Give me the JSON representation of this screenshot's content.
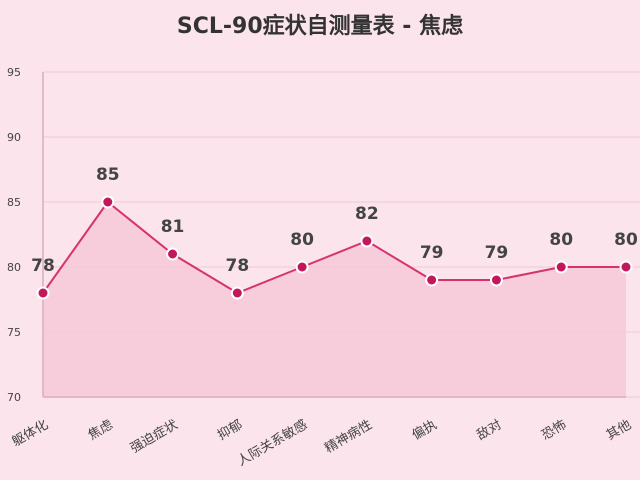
{
  "chart_data": {
    "type": "line",
    "title": "SCL-90症状自测量表 - 焦虑",
    "xlabel": "",
    "ylabel": "",
    "categories": [
      "躯体化",
      "焦虑",
      "强迫症状",
      "抑郁",
      "人际关系敏感",
      "精神病性",
      "偏执",
      "敌对",
      "恐怖",
      "其他"
    ],
    "series": [
      {
        "values": [
          78,
          85,
          81,
          78,
          80,
          82,
          79,
          79,
          80,
          80
        ]
      }
    ],
    "ylim": [
      70,
      95
    ],
    "yticks": [
      70,
      75,
      80,
      85,
      90,
      95
    ],
    "grid": true,
    "area_fill": true,
    "data_labels": true,
    "legend": "none"
  },
  "colors": {
    "background": "#fbe4ec",
    "line": "#d6336c",
    "marker_fill": "#c2185b",
    "marker_stroke": "#ffffff",
    "area": "#f6c6d6",
    "grid": "#efc8d6",
    "axis": "#d8aebf",
    "label": "#444444"
  }
}
